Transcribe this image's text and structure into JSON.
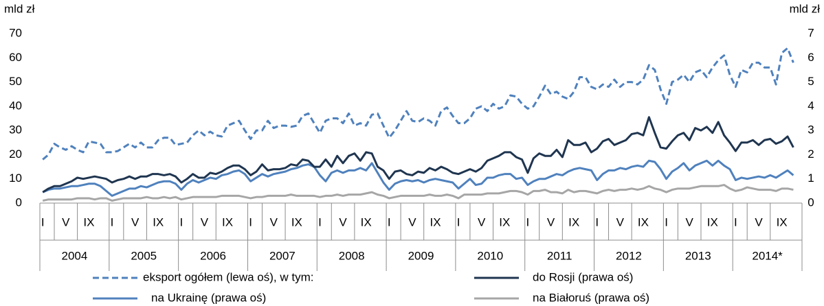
{
  "chart_data": {
    "type": "line",
    "y_label": "mld zł",
    "y2_label": "mld zł",
    "ylim": [
      0,
      70
    ],
    "yticks": [
      0,
      10,
      20,
      30,
      40,
      50,
      60,
      70
    ],
    "y2lim": [
      0,
      7
    ],
    "y2ticks": [
      0,
      1,
      2,
      3,
      4,
      5,
      6,
      7
    ],
    "grid": false,
    "years": [
      "2004",
      "2005",
      "2006",
      "2007",
      "2008",
      "2009",
      "2010",
      "2011",
      "2012",
      "2013",
      "2014*"
    ],
    "categories": [
      "I",
      null,
      null,
      null,
      "V",
      null,
      null,
      null,
      "IX",
      null,
      null,
      null,
      "I",
      null,
      null,
      null,
      "V",
      null,
      null,
      null,
      "IX",
      null,
      null,
      null,
      "I",
      null,
      null,
      null,
      "V",
      null,
      null,
      null,
      "IX",
      null,
      null,
      null,
      "I",
      null,
      null,
      null,
      "V",
      null,
      null,
      null,
      "IX",
      null,
      null,
      null,
      "I",
      null,
      null,
      null,
      "V",
      null,
      null,
      null,
      "IX",
      null,
      null,
      null,
      "I",
      null,
      null,
      null,
      "V",
      null,
      null,
      null,
      "IX",
      null,
      null,
      null,
      "I",
      null,
      null,
      null,
      "V",
      null,
      null,
      null,
      "IX",
      null,
      null,
      null,
      "I",
      null,
      null,
      null,
      "V",
      null,
      null,
      null,
      "IX",
      null,
      null,
      null,
      "I",
      null,
      null,
      null,
      "V",
      null,
      null,
      null,
      "IX",
      null,
      null,
      null,
      "I",
      null,
      null,
      null,
      "V",
      null,
      null,
      null,
      "IX",
      null,
      null,
      null,
      "I",
      null,
      null,
      null,
      "V",
      null,
      null,
      null,
      "IX",
      null,
      null,
      null
    ],
    "series": [
      {
        "name": "eksport ogółem (lewa oś), w tym:",
        "color": "#4f81bd",
        "line_style": "dashed",
        "axis": "y",
        "values": [
          18,
          20,
          24.5,
          23,
          22,
          23.5,
          22,
          21,
          25.5,
          25,
          24.5,
          21,
          21,
          21.5,
          23,
          24.5,
          23,
          25,
          23,
          23,
          26,
          27,
          27,
          24,
          24.5,
          25,
          28,
          30,
          28,
          29.5,
          28,
          27.5,
          32,
          33,
          34,
          30,
          26.5,
          30,
          30,
          34,
          31,
          32,
          32,
          31.5,
          32,
          36,
          37,
          33,
          29,
          34,
          35,
          35,
          33,
          37,
          32,
          33,
          32,
          36.5,
          37,
          32,
          27,
          30,
          34,
          38,
          34,
          33.5,
          35,
          34,
          32,
          38,
          39.5,
          36,
          33,
          33,
          35,
          39,
          40,
          38,
          41,
          39,
          40,
          44.5,
          44,
          41,
          39,
          40,
          44,
          48.5,
          45,
          46,
          44,
          43,
          46,
          52,
          52,
          48,
          47,
          49,
          48,
          51,
          48,
          50,
          50,
          49,
          51,
          57,
          55,
          47,
          41,
          50,
          51,
          53,
          50,
          54,
          55,
          52,
          56,
          59,
          61,
          53,
          48,
          55,
          54,
          58,
          58,
          56,
          56,
          49,
          62,
          64,
          58,
          null
        ]
      },
      {
        "name": "do Rosji (prawa oś)",
        "color": "#1f3550",
        "line_style": "solid",
        "axis": "y2",
        "values": [
          0.45,
          0.6,
          0.7,
          0.7,
          0.8,
          0.9,
          1.05,
          1.0,
          1.05,
          1.1,
          1.05,
          1.0,
          0.85,
          0.95,
          1.0,
          1.1,
          1.0,
          1.1,
          1.1,
          1.2,
          1.2,
          1.15,
          1.2,
          1.1,
          0.85,
          1.0,
          1.2,
          1.05,
          1.05,
          1.25,
          1.2,
          1.3,
          1.45,
          1.55,
          1.55,
          1.4,
          1.15,
          1.3,
          1.6,
          1.35,
          1.4,
          1.4,
          1.45,
          1.6,
          1.55,
          1.8,
          1.75,
          1.5,
          1.5,
          1.8,
          1.5,
          1.95,
          1.65,
          1.95,
          2.05,
          1.75,
          2.1,
          2.05,
          1.5,
          1.35,
          1.0,
          1.3,
          1.35,
          1.2,
          1.15,
          1.3,
          1.25,
          1.45,
          1.35,
          1.5,
          1.4,
          1.25,
          1.2,
          1.3,
          1.4,
          1.3,
          1.45,
          1.75,
          1.85,
          1.95,
          2.1,
          2.1,
          1.9,
          1.8,
          1.25,
          1.85,
          2.05,
          1.95,
          1.95,
          2.2,
          1.9,
          2.6,
          2.4,
          2.4,
          2.5,
          2.1,
          2.25,
          2.55,
          2.65,
          2.4,
          2.5,
          2.6,
          2.85,
          2.9,
          2.8,
          3.55,
          2.9,
          2.3,
          2.25,
          2.55,
          2.8,
          2.9,
          2.6,
          3.1,
          3.0,
          3.15,
          2.9,
          3.35,
          2.8,
          2.5,
          2.15,
          2.5,
          2.5,
          2.6,
          2.4,
          2.6,
          2.65,
          2.45,
          2.55,
          2.75,
          2.3,
          null
        ]
      },
      {
        "name": "na Ukrainę (prawa oś)",
        "color": "#4f81bd",
        "line_style": "solid",
        "axis": "y2",
        "values": [
          0.45,
          0.55,
          0.6,
          0.6,
          0.65,
          0.7,
          0.7,
          0.75,
          0.8,
          0.8,
          0.7,
          0.5,
          0.3,
          0.4,
          0.5,
          0.6,
          0.6,
          0.7,
          0.65,
          0.75,
          0.85,
          0.9,
          0.9,
          0.8,
          0.55,
          0.8,
          0.95,
          0.85,
          0.95,
          1.05,
          1.0,
          1.15,
          1.2,
          1.3,
          1.35,
          1.2,
          0.9,
          1.05,
          1.2,
          1.1,
          1.2,
          1.25,
          1.3,
          1.4,
          1.45,
          1.55,
          1.6,
          1.5,
          1.15,
          0.9,
          1.25,
          1.35,
          1.25,
          1.35,
          1.35,
          1.45,
          1.35,
          1.65,
          1.25,
          0.85,
          0.55,
          0.8,
          0.9,
          0.95,
          0.9,
          0.95,
          0.85,
          0.95,
          1.0,
          0.95,
          0.9,
          0.85,
          0.6,
          0.8,
          1.0,
          0.75,
          0.8,
          1.05,
          1.05,
          1.15,
          1.2,
          1.2,
          1.0,
          1.05,
          0.75,
          0.9,
          1.0,
          1.0,
          1.1,
          1.2,
          1.15,
          1.3,
          1.4,
          1.45,
          1.4,
          1.35,
          0.95,
          1.2,
          1.35,
          1.35,
          1.45,
          1.4,
          1.5,
          1.55,
          1.5,
          1.75,
          1.7,
          1.4,
          1.0,
          1.3,
          1.45,
          1.65,
          1.35,
          1.55,
          1.65,
          1.75,
          1.55,
          1.75,
          1.55,
          1.4,
          0.95,
          1.05,
          1.0,
          1.05,
          1.1,
          1.05,
          1.15,
          1.05,
          1.2,
          1.35,
          1.15,
          null
        ]
      },
      {
        "name": "na Białoruś (prawa oś)",
        "color": "#a6a6a6",
        "line_style": "solid",
        "axis": "y2",
        "values": [
          0.1,
          0.15,
          0.15,
          0.15,
          0.15,
          0.15,
          0.2,
          0.2,
          0.2,
          0.15,
          0.2,
          0.2,
          0.1,
          0.15,
          0.2,
          0.2,
          0.2,
          0.2,
          0.25,
          0.2,
          0.2,
          0.25,
          0.2,
          0.25,
          0.15,
          0.2,
          0.25,
          0.25,
          0.25,
          0.25,
          0.25,
          0.3,
          0.3,
          0.3,
          0.3,
          0.25,
          0.2,
          0.25,
          0.25,
          0.3,
          0.3,
          0.3,
          0.3,
          0.35,
          0.3,
          0.3,
          0.3,
          0.3,
          0.25,
          0.3,
          0.3,
          0.35,
          0.3,
          0.35,
          0.35,
          0.35,
          0.4,
          0.45,
          0.35,
          0.3,
          0.2,
          0.25,
          0.3,
          0.3,
          0.3,
          0.3,
          0.3,
          0.35,
          0.3,
          0.3,
          0.35,
          0.3,
          0.2,
          0.35,
          0.35,
          0.35,
          0.35,
          0.4,
          0.4,
          0.4,
          0.45,
          0.5,
          0.5,
          0.45,
          0.35,
          0.5,
          0.5,
          0.55,
          0.45,
          0.45,
          0.4,
          0.55,
          0.45,
          0.5,
          0.5,
          0.45,
          0.4,
          0.5,
          0.55,
          0.5,
          0.55,
          0.55,
          0.6,
          0.55,
          0.6,
          0.7,
          0.6,
          0.55,
          0.45,
          0.55,
          0.6,
          0.6,
          0.6,
          0.65,
          0.7,
          0.7,
          0.7,
          0.7,
          0.75,
          0.6,
          0.5,
          0.55,
          0.65,
          0.6,
          0.55,
          0.55,
          0.55,
          0.5,
          0.6,
          0.6,
          0.55,
          null
        ]
      }
    ]
  }
}
